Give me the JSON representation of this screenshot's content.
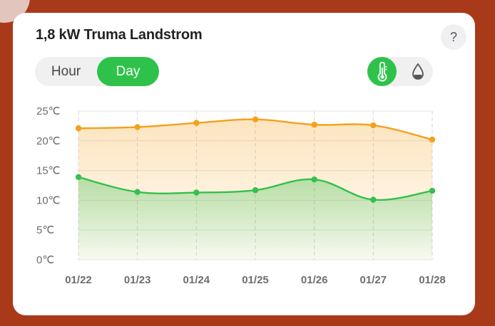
{
  "header": {
    "title": "1,8 kW Truma Landstrom",
    "help_label": "?"
  },
  "range_toggle": {
    "options": [
      "Hour",
      "Day"
    ],
    "selected": "Day"
  },
  "metric_toggle": {
    "options": [
      {
        "icon": "thermometer-icon",
        "selected": true
      },
      {
        "icon": "humidity-drop-icon",
        "selected": false
      }
    ]
  },
  "colors": {
    "accent": "#2fc24a",
    "upper_series": "#f5a01a",
    "lower_series": "#34c04c",
    "background": "#a83a1a"
  },
  "chart_data": {
    "type": "area",
    "categories": [
      "01/22",
      "01/23",
      "01/24",
      "01/25",
      "01/26",
      "01/27",
      "01/28"
    ],
    "y_ticks": [
      "0℃",
      "5℃",
      "10℃",
      "15℃",
      "20℃",
      "25℃"
    ],
    "ylim": [
      0,
      25
    ],
    "grid": true,
    "series": [
      {
        "values": [
          22.1,
          22.3,
          23.0,
          23.6,
          22.7,
          22.6,
          20.2
        ]
      },
      {
        "values": [
          13.9,
          11.4,
          11.3,
          11.7,
          13.5,
          10.1,
          11.6
        ]
      }
    ]
  }
}
